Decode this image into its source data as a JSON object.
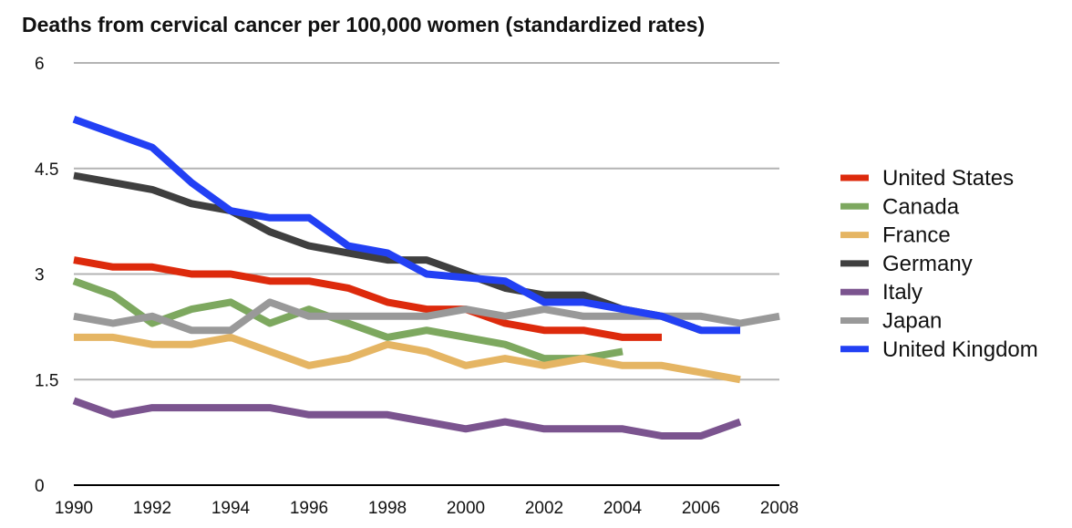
{
  "chart_data": {
    "type": "line",
    "title": "Deaths from cervical cancer per 100,000 women (standardized rates)",
    "xlabel": "",
    "ylabel": "",
    "xlim": [
      1990,
      2008
    ],
    "ylim": [
      0,
      6
    ],
    "x_ticks": [
      1990,
      1992,
      1994,
      1996,
      1998,
      2000,
      2002,
      2004,
      2006,
      2008
    ],
    "y_ticks": [
      0,
      1.5,
      3,
      4.5,
      6
    ],
    "y_tick_labels": [
      "0",
      "1.5",
      "3",
      "4.5",
      "6"
    ],
    "grid": "horizontal",
    "legend_position": "right",
    "series": [
      {
        "name": "United States",
        "color": "#dd2a0c",
        "x": [
          1990,
          1991,
          1992,
          1993,
          1994,
          1995,
          1996,
          1997,
          1998,
          1999,
          2000,
          2001,
          2002,
          2003,
          2004,
          2005
        ],
        "values": [
          3.2,
          3.1,
          3.1,
          3.0,
          3.0,
          2.9,
          2.9,
          2.8,
          2.6,
          2.5,
          2.5,
          2.3,
          2.2,
          2.2,
          2.1,
          2.1
        ]
      },
      {
        "name": "Canada",
        "color": "#7da85f",
        "x": [
          1990,
          1991,
          1992,
          1993,
          1994,
          1995,
          1996,
          1997,
          1998,
          1999,
          2000,
          2001,
          2002,
          2003,
          2004
        ],
        "values": [
          2.9,
          2.7,
          2.3,
          2.5,
          2.6,
          2.3,
          2.5,
          2.3,
          2.1,
          2.2,
          2.1,
          2.0,
          1.8,
          1.8,
          1.9
        ]
      },
      {
        "name": "France",
        "color": "#e5b563",
        "x": [
          1990,
          1991,
          1992,
          1993,
          1994,
          1995,
          1996,
          1997,
          1998,
          1999,
          2000,
          2001,
          2002,
          2003,
          2004,
          2005,
          2006,
          2007
        ],
        "values": [
          2.1,
          2.1,
          2.0,
          2.0,
          2.1,
          1.9,
          1.7,
          1.8,
          2.0,
          1.9,
          1.7,
          1.8,
          1.7,
          1.8,
          1.7,
          1.7,
          1.6,
          1.5
        ]
      },
      {
        "name": "Germany",
        "color": "#3f3f3f",
        "x": [
          1990,
          1991,
          1992,
          1993,
          1994,
          1995,
          1996,
          1997,
          1998,
          1999,
          2000,
          2001,
          2002,
          2003,
          2004,
          2005,
          2006
        ],
        "values": [
          4.4,
          4.3,
          4.2,
          4.0,
          3.9,
          3.6,
          3.4,
          3.3,
          3.2,
          3.2,
          3.0,
          2.8,
          2.7,
          2.7,
          2.5,
          2.4,
          2.2
        ]
      },
      {
        "name": "Italy",
        "color": "#7b548f",
        "x": [
          1990,
          1991,
          1992,
          1993,
          1994,
          1995,
          1996,
          1997,
          1998,
          1999,
          2000,
          2001,
          2002,
          2003,
          2004,
          2005,
          2006,
          2007
        ],
        "values": [
          1.2,
          1.0,
          1.1,
          1.1,
          1.1,
          1.1,
          1.0,
          1.0,
          1.0,
          0.9,
          0.8,
          0.9,
          0.8,
          0.8,
          0.8,
          0.7,
          0.7,
          0.9
        ]
      },
      {
        "name": "Japan",
        "color": "#999999",
        "x": [
          1990,
          1991,
          1992,
          1993,
          1994,
          1995,
          1996,
          1997,
          1998,
          1999,
          2000,
          2001,
          2002,
          2003,
          2004,
          2005,
          2006,
          2007,
          2008
        ],
        "values": [
          2.4,
          2.3,
          2.4,
          2.2,
          2.2,
          2.6,
          2.4,
          2.4,
          2.4,
          2.4,
          2.5,
          2.4,
          2.5,
          2.4,
          2.4,
          2.4,
          2.4,
          2.3,
          2.4
        ]
      },
      {
        "name": "United Kingdom",
        "color": "#2240f4",
        "x": [
          1990,
          1991,
          1992,
          1993,
          1994,
          1995,
          1996,
          1997,
          1998,
          1999,
          2000,
          2001,
          2002,
          2003,
          2004,
          2005,
          2006,
          2007
        ],
        "values": [
          5.2,
          5.0,
          4.8,
          4.3,
          3.9,
          3.8,
          3.8,
          3.4,
          3.3,
          3.0,
          2.95,
          2.9,
          2.6,
          2.6,
          2.5,
          2.4,
          2.2,
          2.2
        ]
      }
    ]
  }
}
